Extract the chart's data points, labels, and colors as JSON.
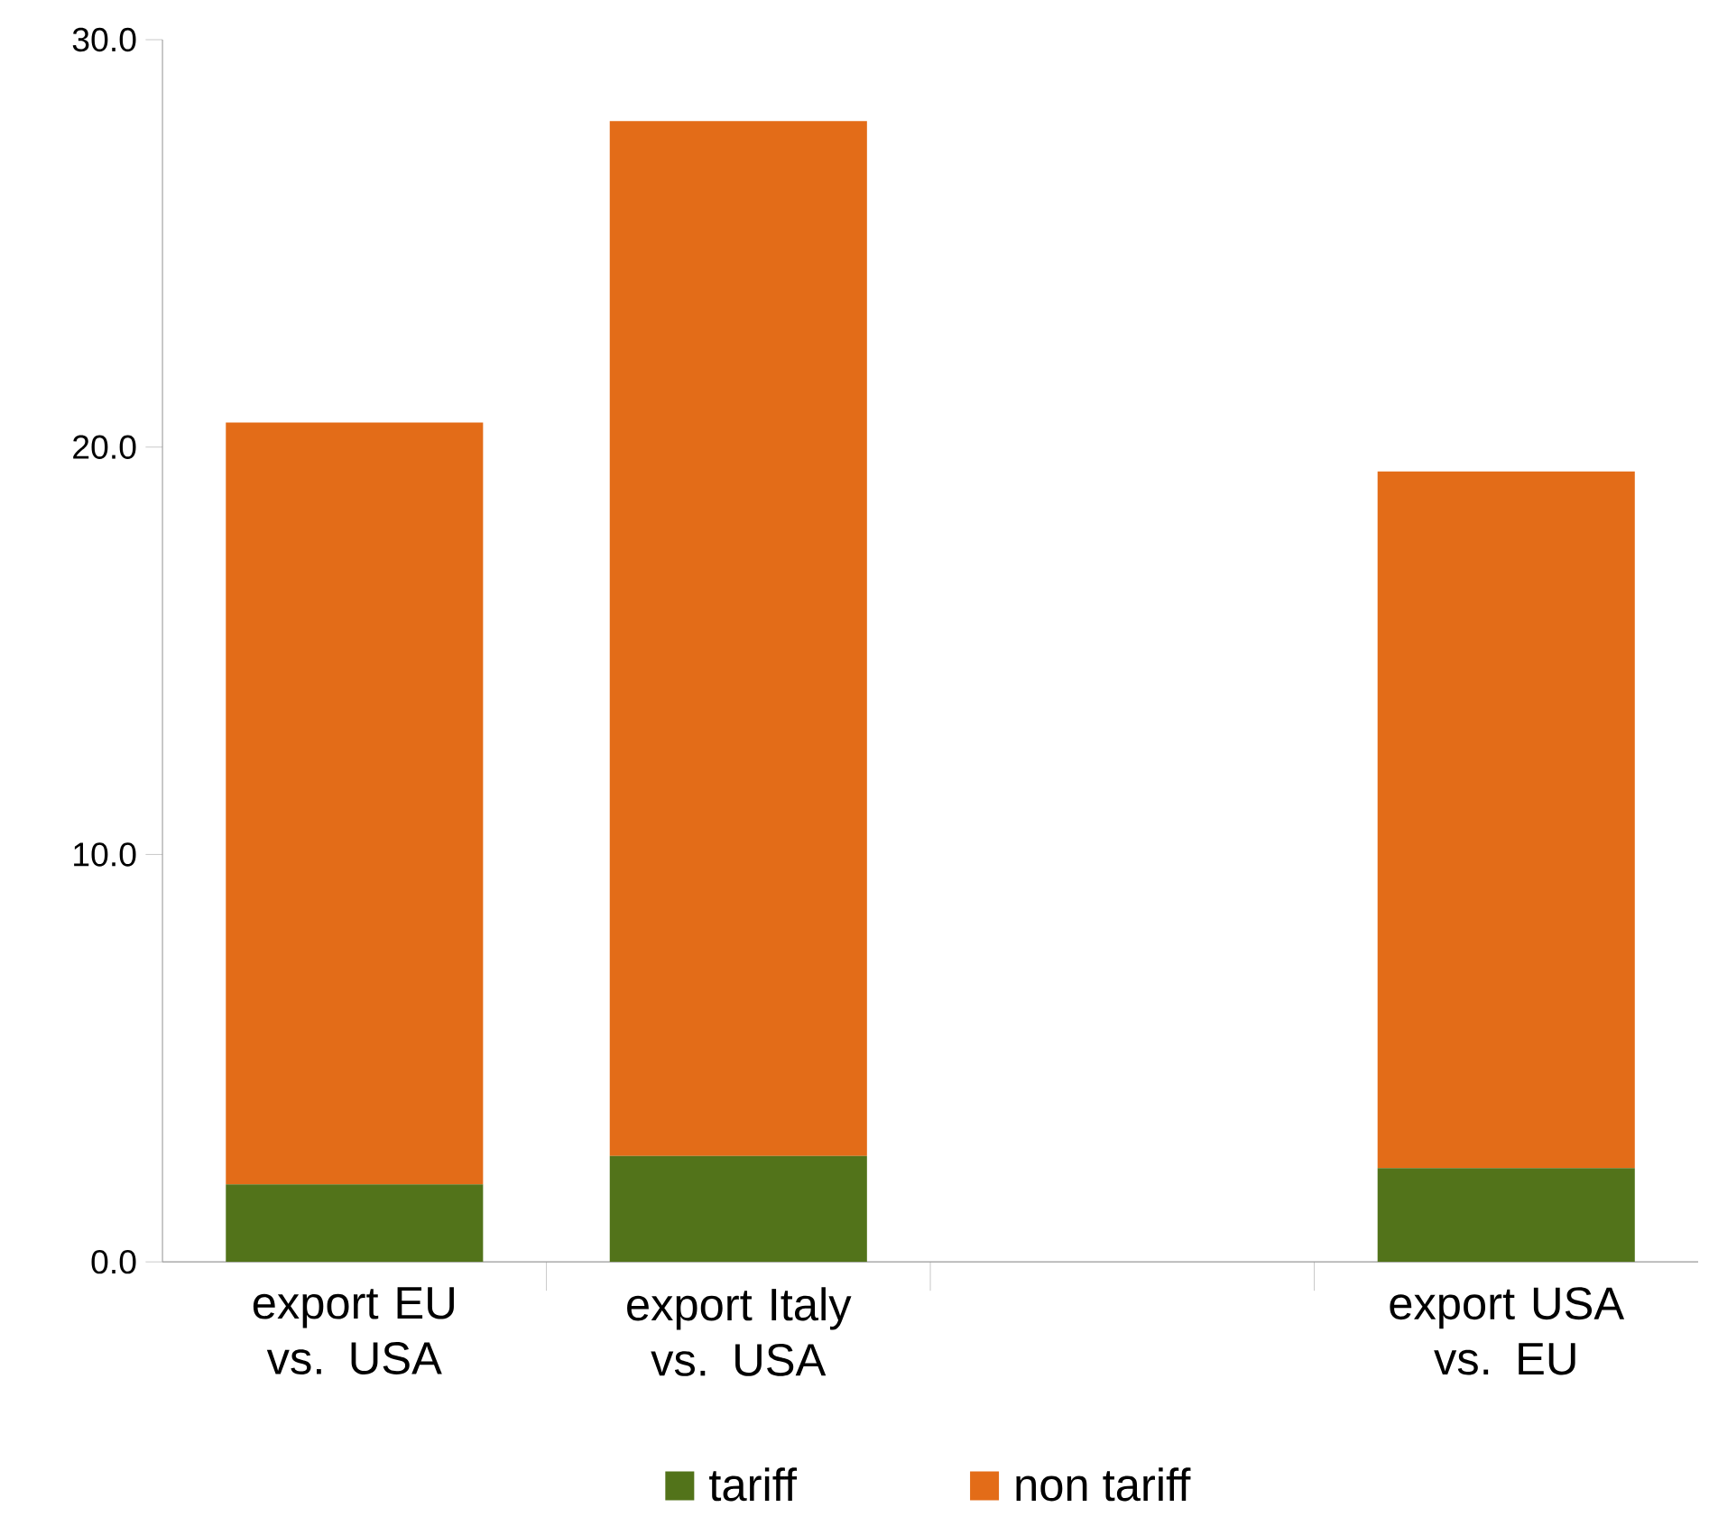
{
  "chart_data": {
    "type": "bar",
    "stacked": true,
    "categories": [
      "export EU vs. USA",
      "export Italy vs. USA",
      null,
      "export USA vs. EU"
    ],
    "series": [
      {
        "name": "tariff",
        "color": "#52731a",
        "values": [
          1.9,
          2.6,
          null,
          2.3
        ]
      },
      {
        "name": "non tariff",
        "color": "#e36c18",
        "values": [
          18.7,
          25.4,
          null,
          17.1
        ]
      }
    ],
    "ylim": [
      0,
      30
    ],
    "yticks": [
      {
        "value": 0,
        "label": "0.0"
      },
      {
        "value": 10,
        "label": "10.0"
      },
      {
        "value": 20,
        "label": "20.0"
      },
      {
        "value": 30,
        "label": "30.0"
      }
    ],
    "grid": false,
    "legend": "bottom"
  }
}
